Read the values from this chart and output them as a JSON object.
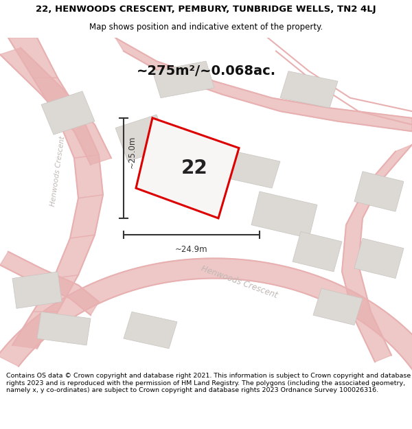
{
  "title_line1": "22, HENWOODS CRESCENT, PEMBURY, TUNBRIDGE WELLS, TN2 4LJ",
  "title_line2": "Map shows position and indicative extent of the property.",
  "area_text": "~275m²/~0.068ac.",
  "property_number": "22",
  "dim_width": "~24.9m",
  "dim_height": "~25.0m",
  "footer": "Contains OS data © Crown copyright and database right 2021. This information is subject to Crown copyright and database rights 2023 and is reproduced with the permission of HM Land Registry. The polygons (including the associated geometry, namely x, y co-ordinates) are subject to Crown copyright and database rights 2023 Ordnance Survey 100026316.",
  "bg_color": "#f8f6f4",
  "road_color": "#e8b0b0",
  "building_color": "#dcd8d4",
  "building_edge": "#c8c4c0",
  "property_fill": "#f8f6f4",
  "property_outline": "#dd0000",
  "dim_color": "#333333",
  "road_label_color": "#c0b8b4",
  "street_name_left": "Henwoods Crescent",
  "street_name_bottom": "Henwoods Crescent"
}
